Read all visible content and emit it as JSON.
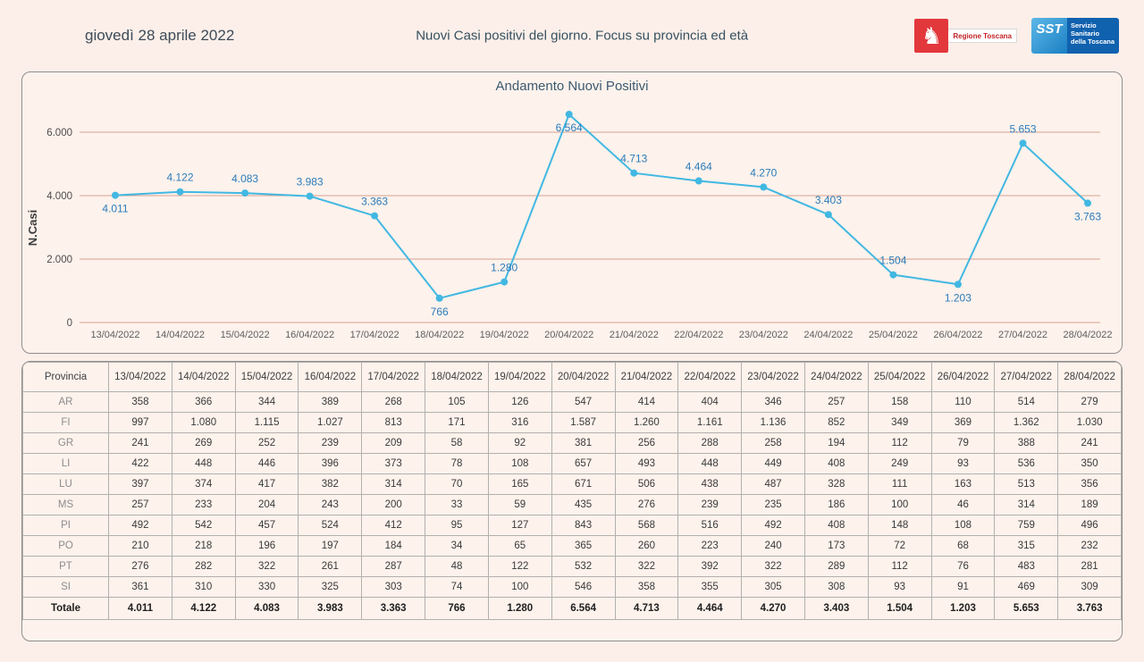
{
  "header": {
    "date": "giovedì 28 aprile 2022",
    "title": "Nuovi Casi positivi del giorno. Focus su provincia ed età",
    "logo_regione_text": "Regione Toscana",
    "logo_sst_abbr": "SST",
    "logo_sst_text": "Servizio Sanitario della Toscana"
  },
  "chart_data": {
    "type": "line",
    "title": "Andamento Nuovi Positivi",
    "ylabel": "N.Casi",
    "xlabel": "",
    "x": [
      "13/04/2022",
      "14/04/2022",
      "15/04/2022",
      "16/04/2022",
      "17/04/2022",
      "18/04/2022",
      "19/04/2022",
      "20/04/2022",
      "21/04/2022",
      "22/04/2022",
      "23/04/2022",
      "24/04/2022",
      "25/04/2022",
      "26/04/2022",
      "27/04/2022",
      "28/04/2022"
    ],
    "values": [
      4011,
      4122,
      4083,
      3983,
      3363,
      766,
      1280,
      6564,
      4713,
      4464,
      4270,
      3403,
      1504,
      1203,
      5653,
      3763
    ],
    "labels": [
      "4.011",
      "4.122",
      "4.083",
      "3.983",
      "3.363",
      "766",
      "1.280",
      "6.564",
      "4.713",
      "4.464",
      "4.270",
      "3.403",
      "1.504",
      "1.203",
      "5.653",
      "3.763"
    ],
    "ylim": [
      0,
      7000
    ],
    "yticks": [
      0,
      2000,
      4000,
      6000
    ],
    "ytick_labels": [
      "0",
      "2.000",
      "4.000",
      "6.000"
    ],
    "grid": true,
    "legend": false,
    "line_color": "#41b8e2",
    "grid_color": "#d7a390",
    "label_color": "#2b7cba",
    "label_below_indices": [
      0,
      5,
      7,
      13,
      15
    ]
  },
  "table": {
    "header": [
      "Provincia",
      "13/04/2022",
      "14/04/2022",
      "15/04/2022",
      "16/04/2022",
      "17/04/2022",
      "18/04/2022",
      "19/04/2022",
      "20/04/2022",
      "21/04/2022",
      "22/04/2022",
      "23/04/2022",
      "24/04/2022",
      "25/04/2022",
      "26/04/2022",
      "27/04/2022",
      "28/04/2022"
    ],
    "rows": [
      {
        "provincia": "AR",
        "values": [
          "358",
          "366",
          "344",
          "389",
          "268",
          "105",
          "126",
          "547",
          "414",
          "404",
          "346",
          "257",
          "158",
          "110",
          "514",
          "279"
        ]
      },
      {
        "provincia": "FI",
        "values": [
          "997",
          "1.080",
          "1.115",
          "1.027",
          "813",
          "171",
          "316",
          "1.587",
          "1.260",
          "1.161",
          "1.136",
          "852",
          "349",
          "369",
          "1.362",
          "1.030"
        ]
      },
      {
        "provincia": "GR",
        "values": [
          "241",
          "269",
          "252",
          "239",
          "209",
          "58",
          "92",
          "381",
          "256",
          "288",
          "258",
          "194",
          "112",
          "79",
          "388",
          "241"
        ]
      },
      {
        "provincia": "LI",
        "values": [
          "422",
          "448",
          "446",
          "396",
          "373",
          "78",
          "108",
          "657",
          "493",
          "448",
          "449",
          "408",
          "249",
          "93",
          "536",
          "350"
        ]
      },
      {
        "provincia": "LU",
        "values": [
          "397",
          "374",
          "417",
          "382",
          "314",
          "70",
          "165",
          "671",
          "506",
          "438",
          "487",
          "328",
          "111",
          "163",
          "513",
          "356"
        ]
      },
      {
        "provincia": "MS",
        "values": [
          "257",
          "233",
          "204",
          "243",
          "200",
          "33",
          "59",
          "435",
          "276",
          "239",
          "235",
          "186",
          "100",
          "46",
          "314",
          "189"
        ]
      },
      {
        "provincia": "PI",
        "values": [
          "492",
          "542",
          "457",
          "524",
          "412",
          "95",
          "127",
          "843",
          "568",
          "516",
          "492",
          "408",
          "148",
          "108",
          "759",
          "496"
        ]
      },
      {
        "provincia": "PO",
        "values": [
          "210",
          "218",
          "196",
          "197",
          "184",
          "34",
          "65",
          "365",
          "260",
          "223",
          "240",
          "173",
          "72",
          "68",
          "315",
          "232"
        ]
      },
      {
        "provincia": "PT",
        "values": [
          "276",
          "282",
          "322",
          "261",
          "287",
          "48",
          "122",
          "532",
          "322",
          "392",
          "322",
          "289",
          "112",
          "76",
          "483",
          "281"
        ]
      },
      {
        "provincia": "SI",
        "values": [
          "361",
          "310",
          "330",
          "325",
          "303",
          "74",
          "100",
          "546",
          "358",
          "355",
          "305",
          "308",
          "93",
          "91",
          "469",
          "309"
        ]
      }
    ],
    "total_row": {
      "provincia": "Totale",
      "values": [
        "4.011",
        "4.122",
        "4.083",
        "3.983",
        "3.363",
        "766",
        "1.280",
        "6.564",
        "4.713",
        "4.464",
        "4.270",
        "3.403",
        "1.504",
        "1.203",
        "5.653",
        "3.763"
      ]
    }
  }
}
